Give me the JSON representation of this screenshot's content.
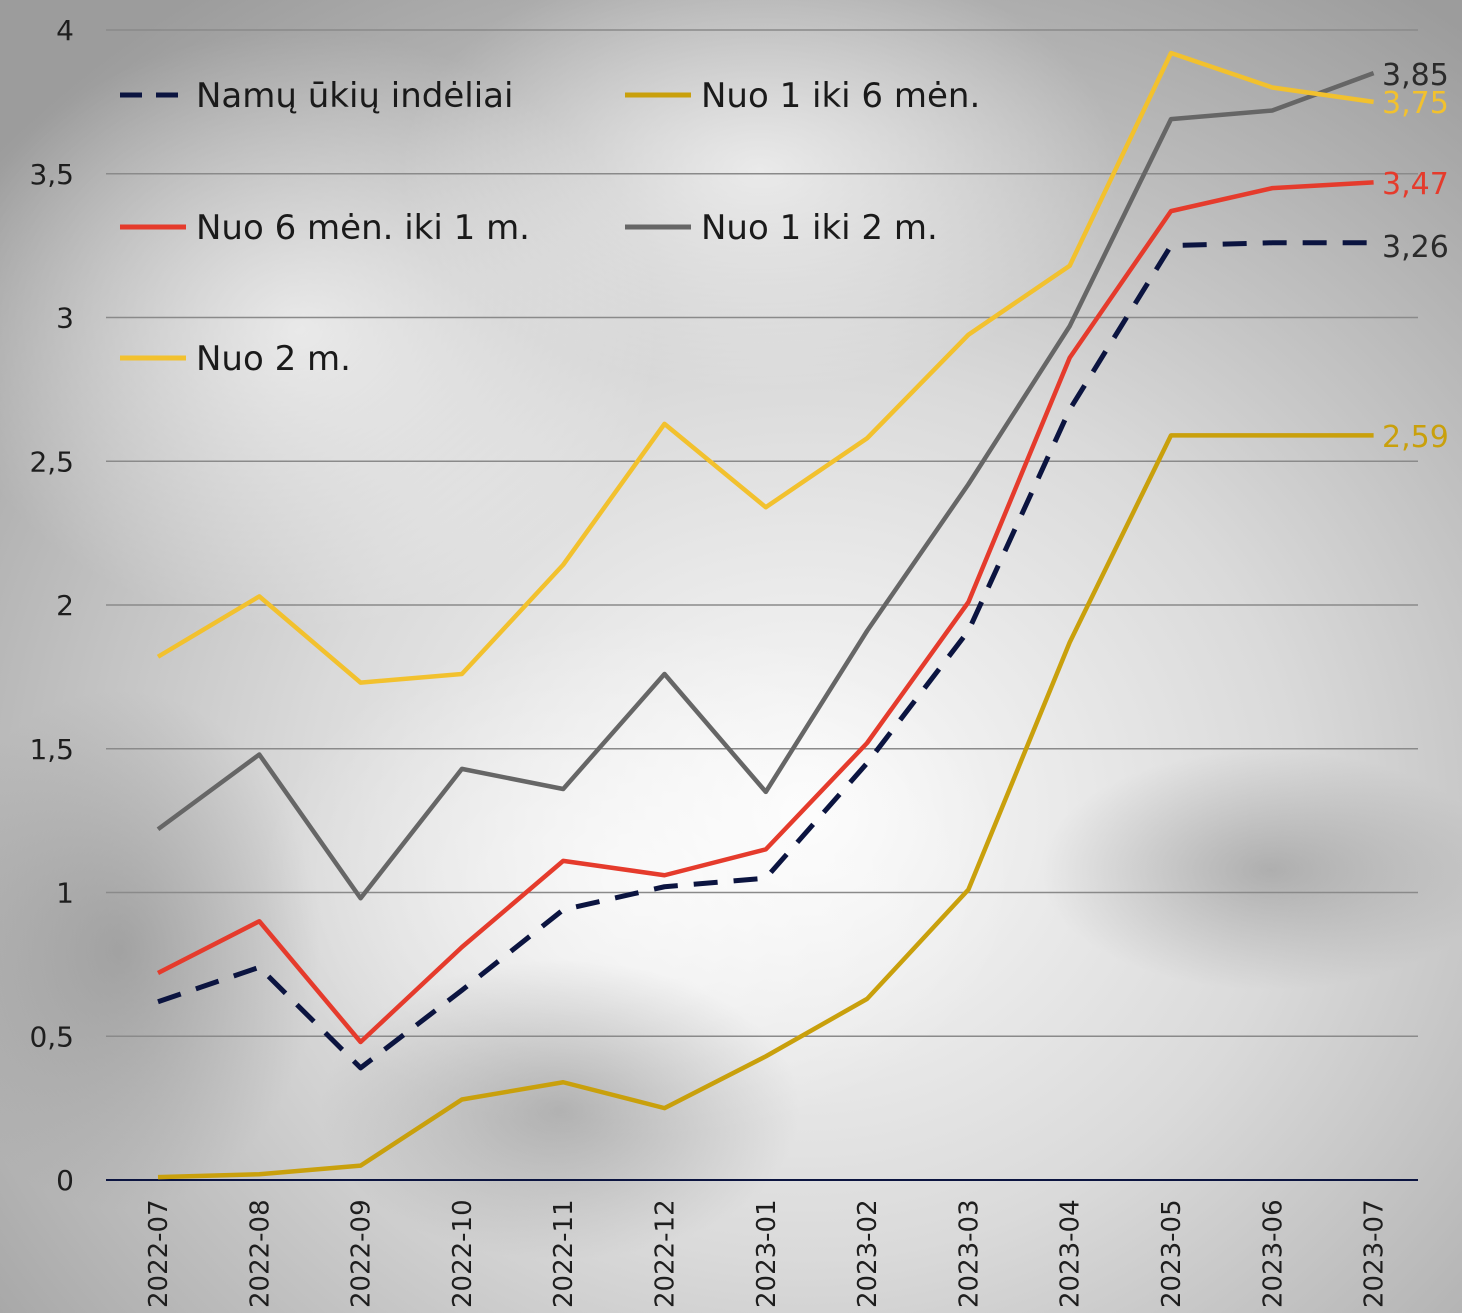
{
  "chart_data": {
    "type": "line",
    "categories": [
      "2022-07",
      "2022-08",
      "2022-09",
      "2022-10",
      "2022-11",
      "2022-12",
      "2023-01",
      "2023-02",
      "2023-03",
      "2023-04",
      "2023-05",
      "2023-06",
      "2023-07"
    ],
    "ylim": [
      0,
      4
    ],
    "yticks": [
      "0",
      "0,5",
      "1",
      "1,5",
      "2",
      "2,5",
      "3",
      "3,5",
      "4"
    ],
    "ytick_values": [
      0,
      0.5,
      1,
      1.5,
      2,
      2.5,
      3,
      3.5,
      4
    ],
    "grid": true,
    "legend_position": "top-left",
    "series": [
      {
        "name": "Namų ūkių indėliai",
        "color": "#0b1440",
        "dash": true,
        "values": [
          0.62,
          0.74,
          0.39,
          0.66,
          0.94,
          1.02,
          1.05,
          1.45,
          1.91,
          2.68,
          3.25,
          3.26,
          3.26
        ],
        "end_label": "3,26"
      },
      {
        "name": "Nuo 1 iki 6 mėn.",
        "color": "#c9a00c",
        "dash": false,
        "values": [
          0.01,
          0.02,
          0.05,
          0.28,
          0.34,
          0.25,
          0.43,
          0.63,
          1.01,
          1.87,
          2.59,
          2.59,
          2.59
        ],
        "end_label": "2,59"
      },
      {
        "name": "Nuo 6 mėn. iki 1 m.",
        "color": "#e53b2c",
        "dash": false,
        "values": [
          0.72,
          0.9,
          0.48,
          0.81,
          1.11,
          1.06,
          1.15,
          1.52,
          2.01,
          2.86,
          3.37,
          3.45,
          3.47
        ],
        "end_label": "3,47"
      },
      {
        "name": "Nuo 1 iki 2 m.",
        "color": "#666666",
        "dash": false,
        "values": [
          1.22,
          1.48,
          0.98,
          1.43,
          1.36,
          1.76,
          1.35,
          1.91,
          2.42,
          2.97,
          3.69,
          3.72,
          3.85
        ],
        "end_label": "3,85"
      },
      {
        "name": "Nuo 2 m.",
        "color": "#f2c12e",
        "dash": false,
        "values": [
          1.82,
          2.03,
          1.73,
          1.76,
          2.14,
          2.63,
          2.34,
          2.58,
          2.94,
          3.18,
          3.92,
          3.8,
          3.75
        ],
        "end_label": "3,75"
      }
    ]
  }
}
